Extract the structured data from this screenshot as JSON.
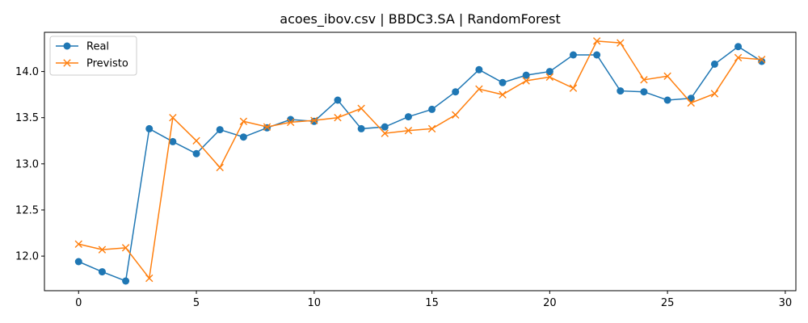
{
  "chart_data": {
    "type": "line",
    "title": "acoes_ibov.csv | BBDC3.SA | RandomForest",
    "xlabel": "",
    "ylabel": "",
    "xlim": [
      -1.45,
      30.45
    ],
    "ylim": [
      11.625,
      14.425
    ],
    "x_ticks": [
      0,
      5,
      10,
      15,
      20,
      25,
      30
    ],
    "y_ticks": [
      12.0,
      12.5,
      13.0,
      13.5,
      14.0
    ],
    "grid": false,
    "legend_position": "top-left",
    "x": [
      0,
      1,
      2,
      3,
      4,
      5,
      6,
      7,
      8,
      9,
      10,
      11,
      12,
      13,
      14,
      15,
      16,
      17,
      18,
      19,
      20,
      21,
      22,
      23,
      24,
      25,
      26,
      27,
      28,
      29
    ],
    "series": [
      {
        "name": "Real",
        "color": "#1f77b4",
        "marker": "circle",
        "values": [
          11.94,
          11.83,
          11.73,
          13.38,
          13.24,
          13.11,
          13.37,
          13.29,
          13.39,
          13.48,
          13.46,
          13.69,
          13.38,
          13.4,
          13.51,
          13.59,
          13.78,
          14.02,
          13.88,
          13.96,
          14.0,
          14.18,
          14.18,
          13.79,
          13.78,
          13.69,
          13.71,
          14.08,
          14.27,
          14.11
        ]
      },
      {
        "name": "Previsto",
        "color": "#ff7f0e",
        "marker": "x",
        "values": [
          12.13,
          12.07,
          12.09,
          11.76,
          13.5,
          13.25,
          12.96,
          13.46,
          13.4,
          13.45,
          13.47,
          13.5,
          13.6,
          13.33,
          13.36,
          13.38,
          13.53,
          13.81,
          13.75,
          13.9,
          13.94,
          13.82,
          14.33,
          14.31,
          13.91,
          13.95,
          13.66,
          13.76,
          14.15,
          14.13
        ]
      }
    ]
  }
}
